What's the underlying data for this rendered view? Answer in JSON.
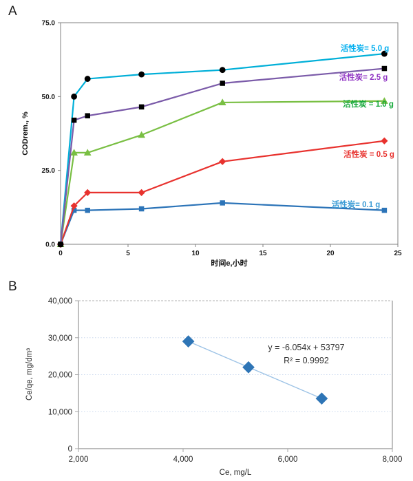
{
  "panels": {
    "a": {
      "label": "A"
    },
    "b": {
      "label": "B"
    }
  },
  "colors": {
    "frame_a": "#808080",
    "frame_b": "#a6a6a6",
    "grid_b": "#c9d7ee",
    "grid_b_top": "#b0b0b0",
    "tick_text": "#1a1a1a"
  },
  "chart_data": [
    {
      "id": "A",
      "type": "line",
      "xlabel": "时间e,小时",
      "ylabel": "CODrem., %",
      "x": [
        0,
        1,
        2,
        6,
        12,
        24
      ],
      "xlim": [
        0,
        25
      ],
      "ylim": [
        0,
        75
      ],
      "x_ticks": [
        {
          "v": 0,
          "label": "0"
        },
        {
          "v": 5,
          "label": "5"
        },
        {
          "v": 10,
          "label": "10"
        },
        {
          "v": 15,
          "label": "15"
        },
        {
          "v": 20,
          "label": "20"
        },
        {
          "v": 25,
          "label": "25"
        }
      ],
      "y_ticks": [
        {
          "v": 0,
          "label": "0.0"
        },
        {
          "v": 25,
          "label": "25.0"
        },
        {
          "v": 50,
          "label": "50.0"
        },
        {
          "v": 75,
          "label": "75.0"
        }
      ],
      "grid": false,
      "legend_position": "inline-right",
      "series": [
        {
          "name": "活性炭= 0.1 g",
          "values": [
            0,
            11.5,
            11.5,
            12,
            14,
            11.5
          ],
          "line_color": "#2c74b8",
          "marker": "square",
          "marker_color": "#2c74b8",
          "label_color": "#3a9bd5"
        },
        {
          "name": "活性炭 = 0.5 g",
          "values": [
            0,
            13,
            17.5,
            17.5,
            28,
            35
          ],
          "line_color": "#e8322e",
          "marker": "diamond",
          "marker_color": "#e8322e",
          "label_color": "#e8322e"
        },
        {
          "name": "活性炭 = 1.0 g",
          "values": [
            0,
            31,
            31,
            37,
            48,
            48.5
          ],
          "line_color": "#79bf43",
          "marker": "triangle",
          "marker_color": "#79bf43",
          "label_color": "#18a93c"
        },
        {
          "name": "活性炭= 5.0 g",
          "values": [
            0,
            50,
            56,
            57.5,
            59,
            64.5
          ],
          "line_color": "#00afd8",
          "marker": "circle",
          "marker_color": "#000000",
          "label_color": "#00aeef"
        },
        {
          "name": "活性炭= 2.5 g",
          "values": [
            0,
            42,
            43.5,
            46.5,
            54.5,
            59.5
          ],
          "line_color": "#7b5ba9",
          "marker": "square",
          "marker_color": "#000000",
          "label_color": "#9136c4"
        }
      ]
    },
    {
      "id": "B",
      "type": "scatter",
      "xlabel": "Ce, mg/L",
      "ylabel": "Ce/qe, mg/dm³",
      "xlim": [
        2000,
        8000
      ],
      "ylim": [
        0,
        40000
      ],
      "x_ticks": [
        {
          "v": 2000,
          "label": "2,000"
        },
        {
          "v": 4000,
          "label": "4,000"
        },
        {
          "v": 6000,
          "label": "6,000"
        },
        {
          "v": 8000,
          "label": "8,000"
        }
      ],
      "y_ticks": [
        {
          "v": 0,
          "label": "0"
        },
        {
          "v": 10000,
          "label": "10,000"
        },
        {
          "v": 20000,
          "label": "20,000"
        },
        {
          "v": 30000,
          "label": "30,000"
        },
        {
          "v": 40000,
          "label": "40,000"
        }
      ],
      "grid": "horizontal-dotted",
      "points": [
        [
          4100,
          29000
        ],
        [
          5250,
          22000
        ],
        [
          6650,
          13550
        ]
      ],
      "marker": "diamond",
      "marker_color": "#2e75b6",
      "trendline": {
        "color": "#9dc3e6",
        "equation": "y = -6.054x + 53797",
        "r_squared": "R² = 0.9992"
      }
    }
  ]
}
